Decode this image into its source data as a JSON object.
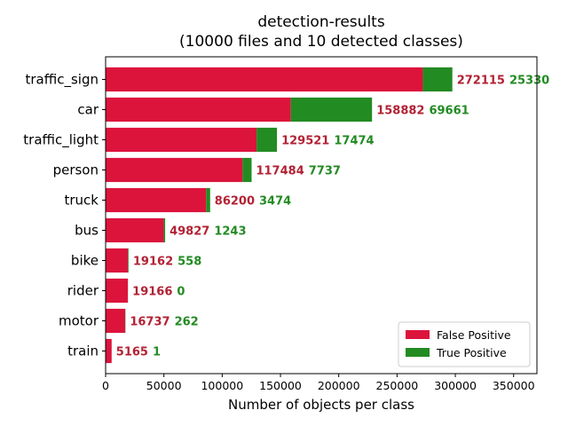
{
  "chart_data": {
    "type": "bar",
    "orientation": "horizontal",
    "stacked": true,
    "title": "detection-results",
    "subtitle": "(10000 files and 10 detected classes)",
    "xlabel": "Number of objects per class",
    "ylabel": "",
    "xlim": [
      0,
      370000
    ],
    "xticks": [
      0,
      50000,
      100000,
      150000,
      200000,
      250000,
      300000,
      350000
    ],
    "xtick_labels": [
      "0",
      "50000",
      "100000",
      "150000",
      "200000",
      "250000",
      "300000",
      "350000"
    ],
    "grid": false,
    "legend_position": "lower-right",
    "categories": [
      "traffic_sign",
      "car",
      "traffic_light",
      "person",
      "truck",
      "bus",
      "bike",
      "rider",
      "motor",
      "train"
    ],
    "series": [
      {
        "name": "False Positive",
        "color": "#dc143c",
        "values": [
          272115,
          158882,
          129521,
          117484,
          86200,
          49827,
          19162,
          19166,
          16737,
          5165
        ]
      },
      {
        "name": "True Positive",
        "color": "#228b22",
        "values": [
          25330,
          69661,
          17474,
          7737,
          3474,
          1243,
          558,
          0,
          262,
          1
        ]
      }
    ]
  }
}
